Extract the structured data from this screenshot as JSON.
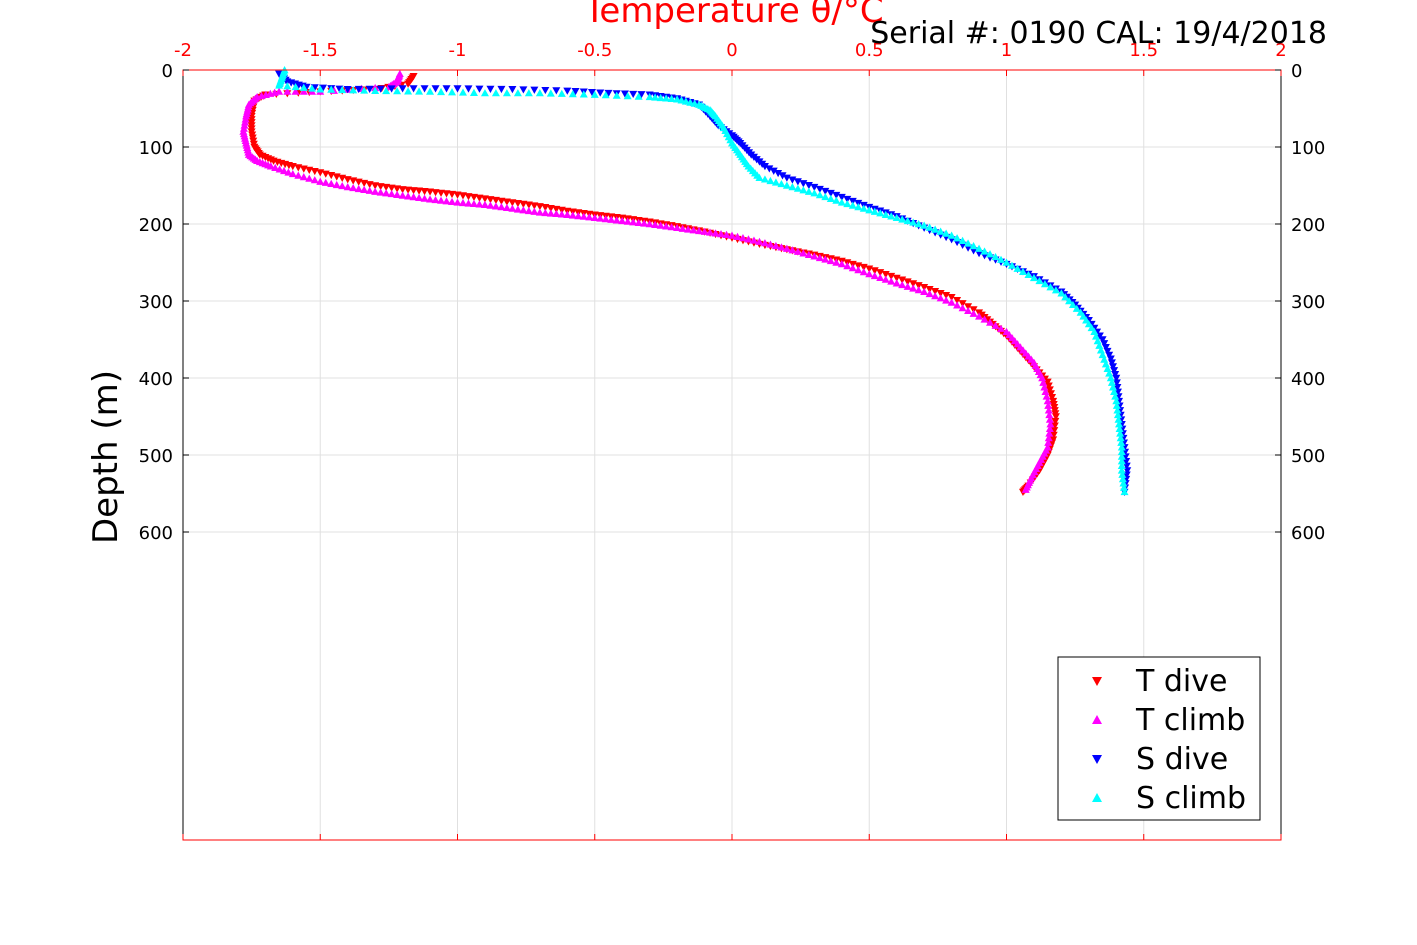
{
  "chart_data": {
    "type": "scatter",
    "title": "Temperature θ/°C",
    "serial_label": "Serial #: 0190  CAL: 19/4/2018",
    "xlabel": "Temperature θ/°C",
    "ylabel": "Depth (m)",
    "xlim": [
      -2,
      2
    ],
    "ylim": [
      0,
      1000
    ],
    "y_reversed": true,
    "x_ticks": [
      "-2",
      "-1.5",
      "-1",
      "-0.5",
      "0",
      "0.5",
      "1",
      "1.5",
      "2"
    ],
    "x_tick_values": [
      -2,
      -1.5,
      -1,
      -0.5,
      0,
      0.5,
      1,
      1.5,
      2
    ],
    "y_ticks": [
      "0",
      "100",
      "200",
      "300",
      "400",
      "500",
      "600"
    ],
    "y_tick_values": [
      0,
      100,
      200,
      300,
      400,
      500,
      600
    ],
    "grid": true,
    "legend_position": "bottom-right",
    "colors": {
      "axis_top": "#ff0000",
      "axis_other": "#000000",
      "grid": "#e0e0e0"
    },
    "series": [
      {
        "name": "T dive",
        "marker": "triangle-down",
        "color": "#ff0000",
        "points": [
          [
            -1.16,
            8
          ],
          [
            -1.18,
            18
          ],
          [
            -1.3,
            25
          ],
          [
            -1.5,
            28
          ],
          [
            -1.7,
            32
          ],
          [
            -1.74,
            40
          ],
          [
            -1.75,
            60
          ],
          [
            -1.75,
            80
          ],
          [
            -1.74,
            100
          ],
          [
            -1.72,
            110
          ],
          [
            -1.67,
            118
          ],
          [
            -1.6,
            125
          ],
          [
            -1.5,
            133
          ],
          [
            -1.4,
            142
          ],
          [
            -1.3,
            150
          ],
          [
            -1.2,
            155
          ],
          [
            -1.1,
            158
          ],
          [
            -1.0,
            162
          ],
          [
            -0.9,
            167
          ],
          [
            -0.8,
            172
          ],
          [
            -0.7,
            177
          ],
          [
            -0.6,
            183
          ],
          [
            -0.5,
            188
          ],
          [
            -0.4,
            192
          ],
          [
            -0.3,
            197
          ],
          [
            -0.2,
            203
          ],
          [
            -0.1,
            210
          ],
          [
            0.0,
            218
          ],
          [
            0.1,
            226
          ],
          [
            0.2,
            233
          ],
          [
            0.3,
            240
          ],
          [
            0.4,
            248
          ],
          [
            0.5,
            258
          ],
          [
            0.6,
            270
          ],
          [
            0.7,
            282
          ],
          [
            0.8,
            295
          ],
          [
            0.9,
            315
          ],
          [
            0.95,
            330
          ],
          [
            1.0,
            345
          ],
          [
            1.05,
            365
          ],
          [
            1.1,
            385
          ],
          [
            1.15,
            405
          ],
          [
            1.17,
            430
          ],
          [
            1.18,
            450
          ],
          [
            1.17,
            480
          ],
          [
            1.15,
            500
          ],
          [
            1.12,
            520
          ],
          [
            1.08,
            540
          ],
          [
            1.06,
            548
          ]
        ]
      },
      {
        "name": "T climb",
        "marker": "triangle-up",
        "color": "#ff00ff",
        "points": [
          [
            -1.21,
            5
          ],
          [
            -1.22,
            15
          ],
          [
            -1.25,
            22
          ],
          [
            -1.5,
            28
          ],
          [
            -1.65,
            28
          ],
          [
            -1.73,
            35
          ],
          [
            -1.76,
            45
          ],
          [
            -1.77,
            60
          ],
          [
            -1.78,
            80
          ],
          [
            -1.77,
            95
          ],
          [
            -1.76,
            110
          ],
          [
            -1.73,
            118
          ],
          [
            -1.68,
            125
          ],
          [
            -1.6,
            135
          ],
          [
            -1.5,
            145
          ],
          [
            -1.4,
            152
          ],
          [
            -1.3,
            158
          ],
          [
            -1.2,
            163
          ],
          [
            -1.1,
            168
          ],
          [
            -1.0,
            172
          ],
          [
            -0.9,
            175
          ],
          [
            -0.8,
            180
          ],
          [
            -0.7,
            185
          ],
          [
            -0.6,
            188
          ],
          [
            -0.5,
            192
          ],
          [
            -0.4,
            196
          ],
          [
            -0.3,
            200
          ],
          [
            -0.2,
            205
          ],
          [
            -0.1,
            210
          ],
          [
            0.0,
            215
          ],
          [
            0.1,
            223
          ],
          [
            0.2,
            232
          ],
          [
            0.3,
            242
          ],
          [
            0.4,
            252
          ],
          [
            0.5,
            265
          ],
          [
            0.6,
            277
          ],
          [
            0.7,
            288
          ],
          [
            0.8,
            302
          ],
          [
            0.9,
            320
          ],
          [
            1.0,
            340
          ],
          [
            1.05,
            360
          ],
          [
            1.1,
            380
          ],
          [
            1.13,
            400
          ],
          [
            1.15,
            430
          ],
          [
            1.16,
            460
          ],
          [
            1.15,
            490
          ],
          [
            1.12,
            510
          ],
          [
            1.09,
            530
          ],
          [
            1.07,
            545
          ]
        ]
      },
      {
        "name": "S dive",
        "marker": "triangle-down",
        "color": "#0000ff",
        "points": [
          [
            -1.65,
            5
          ],
          [
            -1.62,
            15
          ],
          [
            -1.55,
            22
          ],
          [
            -1.4,
            25
          ],
          [
            -1.2,
            24
          ],
          [
            -1.0,
            24
          ],
          [
            -0.8,
            25
          ],
          [
            -0.6,
            27
          ],
          [
            -0.45,
            30
          ],
          [
            -0.3,
            32
          ],
          [
            -0.2,
            37
          ],
          [
            -0.12,
            45
          ],
          [
            -0.08,
            60
          ],
          [
            -0.05,
            72
          ],
          [
            0.0,
            85
          ],
          [
            0.03,
            95
          ],
          [
            0.07,
            110
          ],
          [
            0.12,
            125
          ],
          [
            0.2,
            140
          ],
          [
            0.3,
            152
          ],
          [
            0.4,
            165
          ],
          [
            0.5,
            178
          ],
          [
            0.6,
            190
          ],
          [
            0.7,
            205
          ],
          [
            0.8,
            220
          ],
          [
            0.9,
            238
          ],
          [
            1.0,
            252
          ],
          [
            1.1,
            268
          ],
          [
            1.2,
            288
          ],
          [
            1.25,
            305
          ],
          [
            1.3,
            325
          ],
          [
            1.35,
            350
          ],
          [
            1.38,
            375
          ],
          [
            1.4,
            400
          ],
          [
            1.41,
            430
          ],
          [
            1.42,
            460
          ],
          [
            1.43,
            490
          ],
          [
            1.44,
            520
          ],
          [
            1.43,
            548
          ]
        ]
      },
      {
        "name": "S climb",
        "marker": "triangle-up",
        "color": "#00ffff",
        "points": [
          [
            -1.63,
            0
          ],
          [
            -1.64,
            10
          ],
          [
            -1.65,
            20
          ],
          [
            -1.5,
            25
          ],
          [
            -1.3,
            27
          ],
          [
            -1.1,
            28
          ],
          [
            -0.9,
            30
          ],
          [
            -0.7,
            30
          ],
          [
            -0.5,
            32
          ],
          [
            -0.3,
            35
          ],
          [
            -0.2,
            38
          ],
          [
            -0.12,
            45
          ],
          [
            -0.08,
            52
          ],
          [
            -0.06,
            60
          ],
          [
            -0.03,
            75
          ],
          [
            0.0,
            95
          ],
          [
            0.03,
            110
          ],
          [
            0.06,
            125
          ],
          [
            0.1,
            140
          ],
          [
            0.2,
            150
          ],
          [
            0.3,
            160
          ],
          [
            0.4,
            172
          ],
          [
            0.5,
            182
          ],
          [
            0.6,
            192
          ],
          [
            0.7,
            202
          ],
          [
            0.8,
            215
          ],
          [
            0.9,
            232
          ],
          [
            1.0,
            250
          ],
          [
            1.1,
            270
          ],
          [
            1.2,
            290
          ],
          [
            1.27,
            315
          ],
          [
            1.32,
            340
          ],
          [
            1.35,
            370
          ],
          [
            1.38,
            400
          ],
          [
            1.4,
            430
          ],
          [
            1.41,
            460
          ],
          [
            1.42,
            490
          ],
          [
            1.42,
            520
          ],
          [
            1.43,
            548
          ]
        ]
      }
    ]
  }
}
